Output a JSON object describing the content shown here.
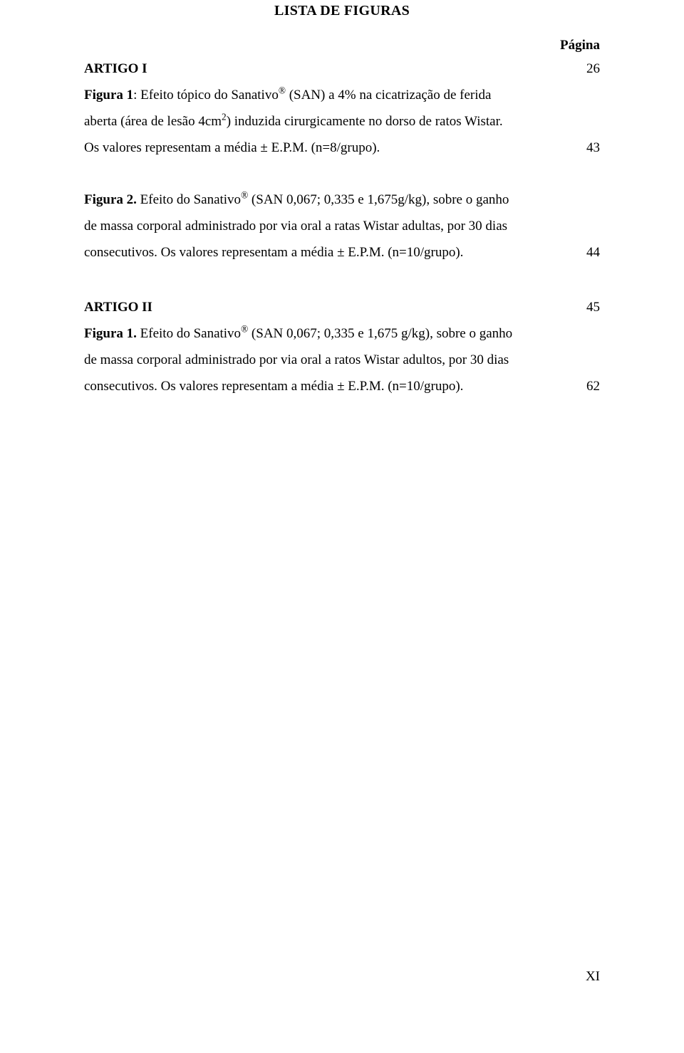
{
  "heading": "LISTA DE FIGURAS",
  "paginaLabel": "Página",
  "artigo1": {
    "label": "ARTIGO I",
    "pageNum": "26",
    "fig1_line1_prefix": "Figura 1",
    "fig1_line1_rest": ": Efeito tópico do Sanativo",
    "fig1_line1_after_reg": " (SAN) a 4% na cicatrização de ferida",
    "fig1_line2_before_sup": "aberta (área de lesão 4cm",
    "fig1_line2_sup": "2",
    "fig1_line2_after_sup": ") induzida cirurgicamente no dorso de ratos Wistar.",
    "fig1_line3_text": "Os valores representam a média ± E.P.M. (n=8/grupo).",
    "fig1_page": "43",
    "fig2_line1_prefix": "Figura 2.",
    "fig2_line1_rest": " Efeito do Sanativo",
    "fig2_line1_after_reg": " (SAN 0,067; 0,335 e 1,675g/kg), sobre o ganho",
    "fig2_line2": "de massa corporal administrado por via oral a ratas Wistar adultas, por 30 dias",
    "fig2_line3_text": "consecutivos. Os valores representam a média ± E.P.M. (n=10/grupo).",
    "fig2_page": "44"
  },
  "artigo2": {
    "label": "ARTIGO II",
    "pageNum": "45",
    "fig1_line1_prefix": "Figura 1.",
    "fig1_line1_rest": " Efeito do Sanativo",
    "fig1_line1_after_reg": " (SAN 0,067; 0,335 e 1,675 g/kg), sobre o ganho",
    "fig1_line2": "de massa corporal administrado por via oral a ratos Wistar adultos, por 30 dias",
    "fig1_line3_text": "consecutivos. Os valores representam a média ± E.P.M. (n=10/grupo).",
    "fig1_page": "62"
  },
  "footerPage": "XI",
  "regMark": "®"
}
